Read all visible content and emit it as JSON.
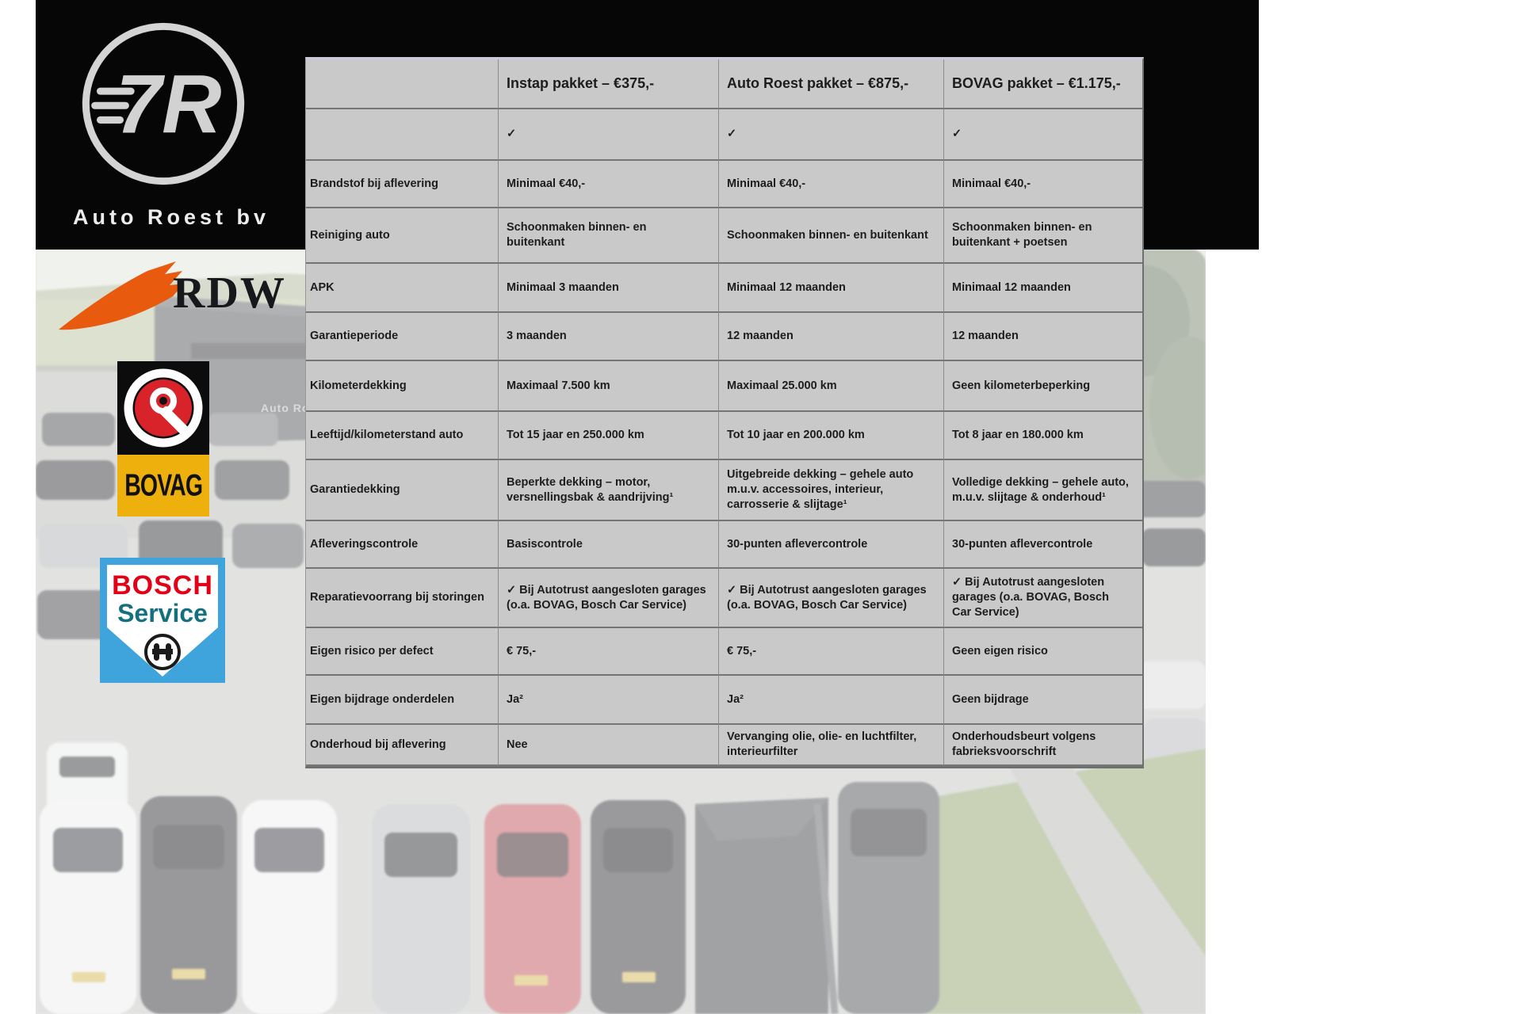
{
  "branding": {
    "company": "Auto Roest bv",
    "monogram": "7R",
    "rdw_label": "RDW",
    "bovag_label": "BOVAG",
    "bosch_line1": "BOSCH",
    "bosch_line2": "Service"
  },
  "photo": {
    "building_sign": "Auto Ro"
  },
  "table": {
    "headers": [
      "",
      "Instap pakket – €375,-",
      "Auto Roest pakket – €875,-",
      "BOVAG pakket – €1.175,-"
    ],
    "rows": [
      {
        "label": "",
        "values": [
          "✓",
          "✓",
          "✓"
        ]
      },
      {
        "label": "Brandstof bij aflevering",
        "values": [
          "Minimaal €40,-",
          "Minimaal €40,-",
          "Minimaal €40,-"
        ]
      },
      {
        "label": "Reiniging auto",
        "values": [
          "Schoonmaken binnen- en buitenkant",
          "Schoonmaken binnen- en buitenkant",
          "Schoonmaken binnen- en buitenkant + poetsen"
        ]
      },
      {
        "label": "APK",
        "values": [
          "Minimaal 3 maanden",
          "Minimaal 12 maanden",
          "Minimaal 12 maanden"
        ]
      },
      {
        "label": "Garantieperiode",
        "values": [
          "3 maanden",
          "12 maanden",
          "12 maanden"
        ]
      },
      {
        "label": "Kilometerdekking",
        "values": [
          "Maximaal 7.500 km",
          "Maximaal 25.000 km",
          "Geen kilometerbeperking"
        ]
      },
      {
        "label": "Leeftijd/kilometerstand auto",
        "values": [
          "Tot 15 jaar en 250.000 km",
          "Tot 10 jaar en 200.000 km",
          "Tot 8 jaar en 180.000 km"
        ]
      },
      {
        "label": "Garantiedekking",
        "values": [
          "Beperkte dekking – motor, versnellingsbak & aandrijving¹",
          "Uitgebreide dekking – gehele auto m.u.v. accessoires, interieur, carrosserie & slijtage¹",
          "Volledige dekking – gehele auto, m.u.v. slijtage & onderhoud¹"
        ]
      },
      {
        "label": "Afleveringscontrole",
        "values": [
          "Basiscontrole",
          "30-punten aflevercontrole",
          "30-punten aflevercontrole"
        ]
      },
      {
        "label": "Reparatievoorrang bij storingen",
        "values": [
          "✓ Bij Autotrust aangesloten garages (o.a. BOVAG, Bosch Car Service)",
          "✓ Bij Autotrust aangesloten garages (o.a. BOVAG, Bosch Car Service)",
          "✓ Bij Autotrust aangesloten garages (o.a. BOVAG, Bosch Car Service)"
        ]
      },
      {
        "label": "Eigen risico per defect",
        "values": [
          "€ 75,-",
          "€ 75,-",
          "Geen eigen risico"
        ]
      },
      {
        "label": "Eigen bijdrage onderdelen",
        "values": [
          "Ja²",
          "Ja²",
          "Geen bijdrage"
        ]
      },
      {
        "label": "Onderhoud bij aflevering",
        "values": [
          "Nee",
          "Vervanging olie, olie- en luchtfilter, interieurfilter",
          "Onderhoudsbeurt volgens fabrieksvoorschrift"
        ]
      }
    ]
  },
  "colors": {
    "accent": "#cfc8dc",
    "band": "#060606",
    "table-bg": "#c9c9c9",
    "rdw-orange": "#e85a0e",
    "bovag-yellow": "#eeb00c",
    "bovag-red": "#d8232a",
    "bosch-blue": "#3fa3dc",
    "bosch-red": "#e30016",
    "bosch-teal": "#15707e"
  }
}
